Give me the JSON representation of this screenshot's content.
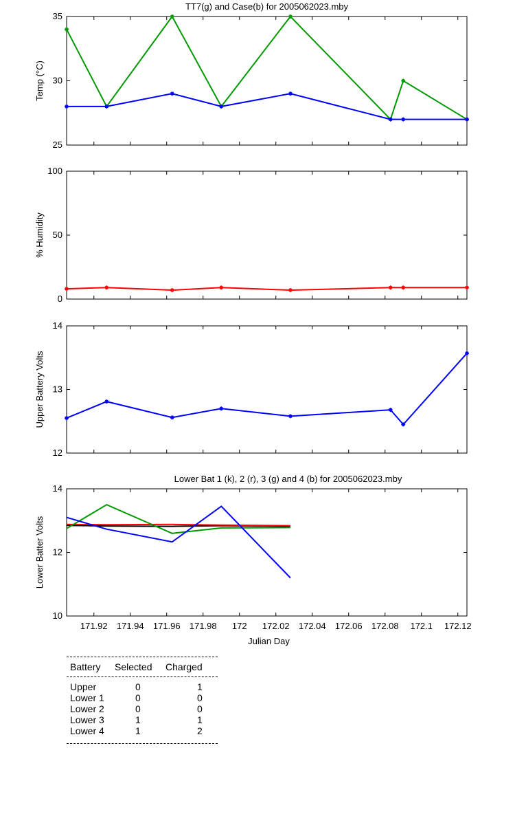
{
  "chart_data": [
    {
      "type": "line",
      "title": "TT7(g) and Case(b) for 2005062023.mby",
      "xlabel": "",
      "ylabel": "Temp  (°C)",
      "xlim": [
        171.905,
        172.125
      ],
      "ylim": [
        25,
        35
      ],
      "yticks": [
        "25",
        "30",
        "35"
      ],
      "grid": false,
      "series": [
        {
          "color": "#009900",
          "x": [
            171.905,
            171.927,
            171.963,
            171.99,
            172.028,
            172.083,
            172.09,
            172.125
          ],
          "y": [
            34,
            28,
            35,
            28,
            35,
            27,
            30,
            27
          ]
        },
        {
          "color": "#0000ff",
          "x": [
            171.905,
            171.927,
            171.963,
            171.99,
            172.028,
            172.083,
            172.09,
            172.125
          ],
          "y": [
            28,
            28,
            29,
            28,
            29,
            27,
            27,
            27
          ]
        }
      ]
    },
    {
      "type": "line",
      "title": "",
      "xlabel": "",
      "ylabel": "% Humidity",
      "xlim": [
        171.905,
        172.125
      ],
      "ylim": [
        0,
        100
      ],
      "yticks": [
        "0",
        "50",
        "100"
      ],
      "grid": false,
      "series": [
        {
          "color": "#ff0000",
          "x": [
            171.905,
            171.927,
            171.963,
            171.99,
            172.028,
            172.083,
            172.09,
            172.125
          ],
          "y": [
            8,
            9,
            7,
            9,
            7,
            9,
            9,
            9
          ]
        }
      ]
    },
    {
      "type": "line",
      "title": "",
      "xlabel": "",
      "ylabel": "Upper Battery Volts",
      "xlim": [
        171.905,
        172.125
      ],
      "ylim": [
        12,
        14
      ],
      "yticks": [
        "12",
        "13",
        "14"
      ],
      "grid": false,
      "series": [
        {
          "color": "#0000ff",
          "x": [
            171.905,
            171.927,
            171.963,
            171.99,
            172.028,
            172.083,
            172.09,
            172.125
          ],
          "y": [
            12.55,
            12.81,
            12.56,
            12.7,
            12.58,
            12.68,
            12.45,
            13.57
          ]
        }
      ]
    },
    {
      "type": "line",
      "title": "Lower Bat 1 (k), 2 (r), 3 (g) and 4 (b) for 2005062023.mby",
      "xlabel": "Julian Day",
      "ylabel": "Lower Batter Volts",
      "xlim": [
        171.905,
        172.125
      ],
      "ylim": [
        10,
        14
      ],
      "yticks": [
        "10",
        "12",
        "14"
      ],
      "xticks": [
        "171.92",
        "171.94",
        "171.96",
        "171.98",
        "172",
        "172.02",
        "172.04",
        "172.06",
        "172.08",
        "172.1",
        "172.12"
      ],
      "xtick_values": [
        171.92,
        171.94,
        171.96,
        171.98,
        172.0,
        172.02,
        172.04,
        172.06,
        172.08,
        172.1,
        172.12
      ],
      "grid": false,
      "series": [
        {
          "color": "#000000",
          "x": [
            171.905,
            171.927,
            171.963,
            171.99,
            172.028
          ],
          "y": [
            12.85,
            12.83,
            12.82,
            12.84,
            12.82
          ]
        },
        {
          "color": "#ff0000",
          "x": [
            171.905,
            171.927,
            171.963,
            171.99,
            172.028
          ],
          "y": [
            12.88,
            12.87,
            12.88,
            12.86,
            12.84
          ]
        },
        {
          "color": "#009900",
          "x": [
            171.905,
            171.927,
            171.963,
            171.99,
            172.028
          ],
          "y": [
            12.75,
            13.5,
            12.6,
            12.77,
            12.78
          ]
        },
        {
          "color": "#0000ff",
          "x": [
            171.905,
            171.927,
            171.963,
            171.99,
            172.028
          ],
          "y": [
            13.1,
            12.73,
            12.33,
            13.45,
            11.2
          ]
        }
      ]
    }
  ],
  "battery_table": {
    "headers": {
      "battery": "Battery",
      "selected": "Selected",
      "charged": "Charged"
    },
    "rows": [
      {
        "name": "Upper",
        "selected": "0",
        "charged": "1"
      },
      {
        "name": "Lower 1",
        "selected": "0",
        "charged": "0"
      },
      {
        "name": "Lower 2",
        "selected": "0",
        "charged": "0"
      },
      {
        "name": "Lower 3",
        "selected": "1",
        "charged": "1"
      },
      {
        "name": "Lower 4",
        "selected": "1",
        "charged": "2"
      }
    ]
  }
}
